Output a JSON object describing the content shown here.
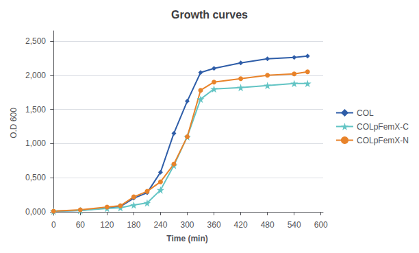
{
  "chart_data": {
    "type": "line",
    "title": "Growth curves",
    "xlabel": "Time (min)",
    "ylabel": "O.D 600",
    "x": [
      0,
      60,
      120,
      150,
      180,
      210,
      240,
      270,
      300,
      330,
      360,
      420,
      480,
      540,
      570
    ],
    "series": [
      {
        "name": "COL",
        "color": "#2E5DA8",
        "marker": "diamond",
        "values": [
          0.01,
          0.02,
          0.06,
          0.08,
          0.2,
          0.28,
          0.58,
          1.15,
          1.62,
          2.04,
          2.1,
          2.18,
          2.24,
          2.26,
          2.28
        ]
      },
      {
        "name": "COLpFemX-C",
        "color": "#62C4C4",
        "marker": "star",
        "values": [
          0.01,
          0.02,
          0.05,
          0.06,
          0.1,
          0.13,
          0.32,
          0.68,
          1.1,
          1.65,
          1.8,
          1.82,
          1.85,
          1.88,
          1.88
        ]
      },
      {
        "name": "COLpFemX-N",
        "color": "#E8832A",
        "marker": "circle",
        "values": [
          0.01,
          0.03,
          0.07,
          0.09,
          0.22,
          0.3,
          0.44,
          0.7,
          1.1,
          1.78,
          1.9,
          1.95,
          2.0,
          2.02,
          2.05
        ]
      }
    ],
    "xlim": [
      -5,
      605
    ],
    "xticks": [
      0,
      60,
      120,
      180,
      240,
      300,
      360,
      420,
      480,
      540,
      600
    ],
    "ylim": [
      -0.05,
      2.65
    ],
    "yticks": [
      {
        "value": 0.0,
        "label": "0,000"
      },
      {
        "value": 0.5,
        "label": "0,500"
      },
      {
        "value": 1.0,
        "label": "1,000"
      },
      {
        "value": 1.5,
        "label": "1,500"
      },
      {
        "value": 2.0,
        "label": "2,000"
      },
      {
        "value": 2.5,
        "label": "2,500"
      }
    ],
    "grid": "y",
    "legend": "right"
  }
}
